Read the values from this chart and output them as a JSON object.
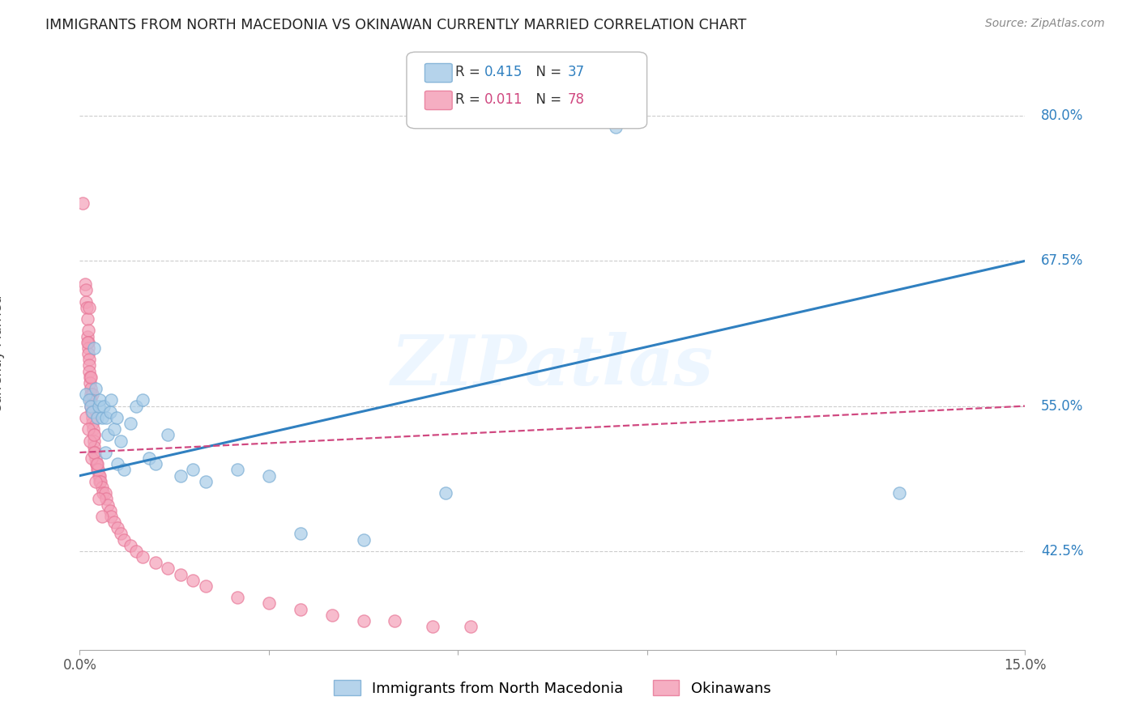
{
  "title": "IMMIGRANTS FROM NORTH MACEDONIA VS OKINAWAN CURRENTLY MARRIED CORRELATION CHART",
  "source": "Source: ZipAtlas.com",
  "ylabel": "Currently Married",
  "xmin": 0.0,
  "xmax": 15.0,
  "ymin": 34.0,
  "ymax": 85.0,
  "ytick_vals": [
    42.5,
    55.0,
    67.5,
    80.0
  ],
  "legend_blue_r": "R = 0.415",
  "legend_blue_n": "N = 37",
  "legend_pink_r": "R = 0.011",
  "legend_pink_n": "N = 78",
  "legend_blue_label": "Immigrants from North Macedonia",
  "legend_pink_label": "Okinawans",
  "blue_fill": "#a8cce8",
  "blue_edge": "#7aadd4",
  "pink_fill": "#f4a0b8",
  "pink_edge": "#e87898",
  "blue_line": "#3080c0",
  "pink_line": "#d04880",
  "watermark": "ZIPatlas",
  "blue_r_color": "#3080c0",
  "pink_r_color": "#d04880",
  "blue_n_color": "#3080c0",
  "pink_n_color": "#d04880",
  "blue_points_x": [
    0.1,
    0.15,
    0.18,
    0.2,
    0.22,
    0.25,
    0.28,
    0.3,
    0.32,
    0.35,
    0.38,
    0.4,
    0.42,
    0.45,
    0.48,
    0.5,
    0.55,
    0.58,
    0.6,
    0.65,
    0.7,
    0.8,
    0.9,
    1.0,
    1.1,
    1.2,
    1.4,
    1.6,
    1.8,
    2.0,
    2.5,
    3.0,
    3.5,
    4.5,
    5.8,
    8.5,
    13.0
  ],
  "blue_points_y": [
    56.0,
    55.5,
    55.0,
    54.5,
    60.0,
    56.5,
    54.0,
    55.0,
    55.5,
    54.0,
    55.0,
    51.0,
    54.0,
    52.5,
    54.5,
    55.5,
    53.0,
    54.0,
    50.0,
    52.0,
    49.5,
    53.5,
    55.0,
    55.5,
    50.5,
    50.0,
    52.5,
    49.0,
    49.5,
    48.5,
    49.5,
    49.0,
    44.0,
    43.5,
    47.5,
    79.0,
    47.5
  ],
  "pink_points_x": [
    0.05,
    0.08,
    0.1,
    0.1,
    0.11,
    0.12,
    0.12,
    0.13,
    0.13,
    0.14,
    0.14,
    0.15,
    0.15,
    0.15,
    0.16,
    0.16,
    0.17,
    0.17,
    0.18,
    0.18,
    0.19,
    0.2,
    0.2,
    0.21,
    0.22,
    0.22,
    0.23,
    0.24,
    0.25,
    0.26,
    0.27,
    0.28,
    0.29,
    0.3,
    0.31,
    0.32,
    0.33,
    0.35,
    0.37,
    0.4,
    0.42,
    0.45,
    0.48,
    0.5,
    0.55,
    0.6,
    0.65,
    0.7,
    0.8,
    0.9,
    1.0,
    1.2,
    1.4,
    1.6,
    1.8,
    2.0,
    2.5,
    3.0,
    3.5,
    4.0,
    4.5,
    5.0,
    5.6,
    6.2,
    0.1,
    0.13,
    0.16,
    0.19,
    0.22,
    0.25,
    0.3,
    0.35,
    0.2,
    0.15,
    0.12,
    0.18,
    0.23,
    0.28
  ],
  "pink_points_y": [
    72.5,
    65.5,
    65.0,
    64.0,
    63.5,
    62.5,
    61.0,
    61.5,
    60.5,
    60.0,
    59.5,
    59.0,
    58.5,
    58.0,
    57.5,
    57.0,
    56.5,
    56.0,
    55.5,
    55.0,
    54.5,
    54.0,
    53.5,
    53.0,
    52.5,
    52.0,
    51.5,
    51.0,
    50.5,
    50.0,
    50.0,
    49.5,
    49.5,
    49.0,
    49.0,
    48.5,
    48.5,
    48.0,
    47.5,
    47.5,
    47.0,
    46.5,
    46.0,
    45.5,
    45.0,
    44.5,
    44.0,
    43.5,
    43.0,
    42.5,
    42.0,
    41.5,
    41.0,
    40.5,
    40.0,
    39.5,
    38.5,
    38.0,
    37.5,
    37.0,
    36.5,
    36.5,
    36.0,
    36.0,
    54.0,
    53.0,
    52.0,
    50.5,
    51.0,
    48.5,
    47.0,
    45.5,
    56.0,
    63.5,
    60.5,
    57.5,
    52.5,
    50.0
  ]
}
